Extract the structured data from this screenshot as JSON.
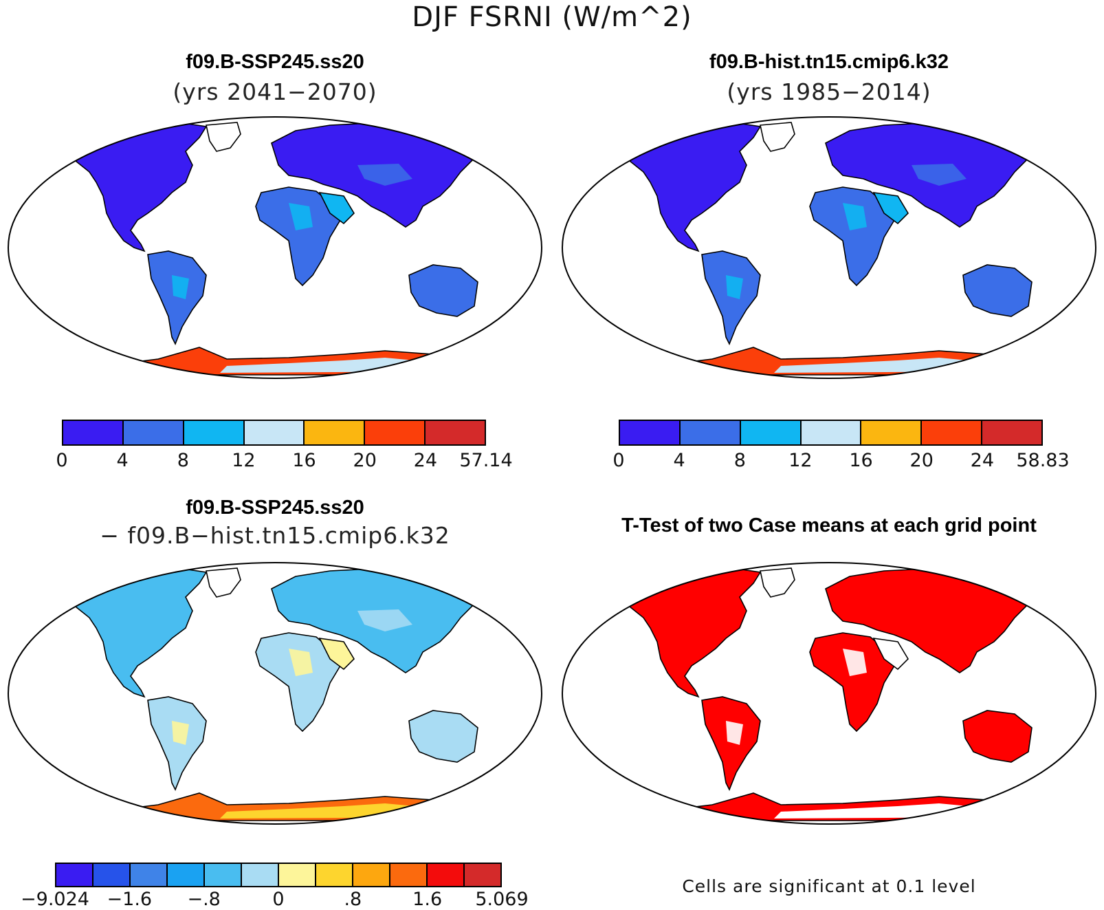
{
  "figure": {
    "title": "DJF FSRNI (W/m^2)"
  },
  "panels": {
    "ssp": {
      "title": "f09.B-SSP245.ss20",
      "subtitle": "(yrs 2041−2070)"
    },
    "hist": {
      "title": "f09.B-hist.tn15.cmip6.k32",
      "subtitle": "(yrs 1985−2014)"
    },
    "diff": {
      "title": "f09.B-SSP245.ss20",
      "subtitle": "− f09.B−hist.tn15.cmip6.k32"
    },
    "ttest": {
      "title": "T-Test of two Case means at each grid point",
      "note": "Cells are significant at 0.1 level"
    }
  },
  "colorbars": {
    "ssp": {
      "colors": [
        "#3a1cf2",
        "#3b6ee8",
        "#10b6f2",
        "#c8e6f6",
        "#fbb610",
        "#fb3f0a",
        "#d42a2a"
      ],
      "labels": [
        "0",
        "4",
        "8",
        "12",
        "16",
        "20",
        "24",
        "57.14"
      ]
    },
    "hist": {
      "colors": [
        "#3a1cf2",
        "#3b6ee8",
        "#10b6f2",
        "#c8e6f6",
        "#fbb610",
        "#fb3f0a",
        "#d42a2a"
      ],
      "labels": [
        "0",
        "4",
        "8",
        "12",
        "16",
        "20",
        "24",
        "58.83"
      ]
    },
    "diff": {
      "colors": [
        "#3a1cf2",
        "#2653ea",
        "#3f83e8",
        "#1aa2f2",
        "#49bdf0",
        "#a9dcf3",
        "#fdf59a",
        "#fdd52e",
        "#fda70f",
        "#fb6a0e",
        "#f30c0c",
        "#d42a2a"
      ],
      "labels": [
        "−9.024",
        "−1.6",
        "−.8",
        "0",
        ".8",
        "1.6",
        "5.069"
      ]
    }
  },
  "map_fills": {
    "ssp": {
      "land": "#3b6ee8",
      "north_land": "#3a1cf2",
      "dry": "#10b6f2",
      "antarctica": "#c8e6f6",
      "ant_edge": "#fb3f0a"
    },
    "hist": {
      "land": "#3b6ee8",
      "north_land": "#3a1cf2",
      "dry": "#10b6f2",
      "antarctica": "#c8e6f6",
      "ant_edge": "#fb3f0a"
    },
    "diff": {
      "land": "#a9dcf3",
      "north_land": "#49bdf0",
      "dry": "#fdf59a",
      "antarctica": "#fdd52e",
      "ant_edge": "#fb6a0e"
    },
    "ttest": {
      "land": "#ff0000",
      "north_land": "#ff0000",
      "dry": "#ffffff",
      "antarctica": "#ffffff",
      "ant_edge": "#ff0000"
    }
  }
}
